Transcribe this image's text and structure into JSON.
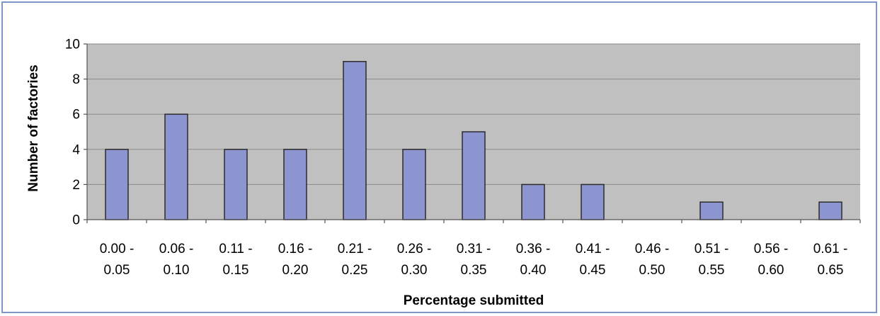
{
  "chart_data": {
    "type": "bar",
    "title": "",
    "xlabel": "Percentage submitted",
    "ylabel": "Number of factories",
    "ylim": [
      0,
      10
    ],
    "yticks": [
      0,
      2,
      4,
      6,
      8,
      10
    ],
    "grid": true,
    "legend": "none",
    "categories": [
      [
        "0.00 -",
        "0.05"
      ],
      [
        "0.06 -",
        "0.10"
      ],
      [
        "0.11 -",
        "0.15"
      ],
      [
        "0.16 -",
        "0.20"
      ],
      [
        "0.21 -",
        "0.25"
      ],
      [
        "0.26 -",
        "0.30"
      ],
      [
        "0.31 -",
        "0.35"
      ],
      [
        "0.36 -",
        "0.40"
      ],
      [
        "0.41 -",
        "0.45"
      ],
      [
        "0.46 -",
        "0.50"
      ],
      [
        "0.51 -",
        "0.55"
      ],
      [
        "0.56 -",
        "0.60"
      ],
      [
        "0.61 -",
        "0.65"
      ]
    ],
    "values": [
      4,
      6,
      4,
      4,
      9,
      4,
      5,
      2,
      2,
      0,
      1,
      0,
      1
    ],
    "colors": {
      "plot_background": "#c0c0c0",
      "bar_fill": "#8c95cf",
      "bar_stroke": "#2b2b2b",
      "gridline": "#8a8a8a",
      "frame_border": "#7f96c9"
    }
  }
}
